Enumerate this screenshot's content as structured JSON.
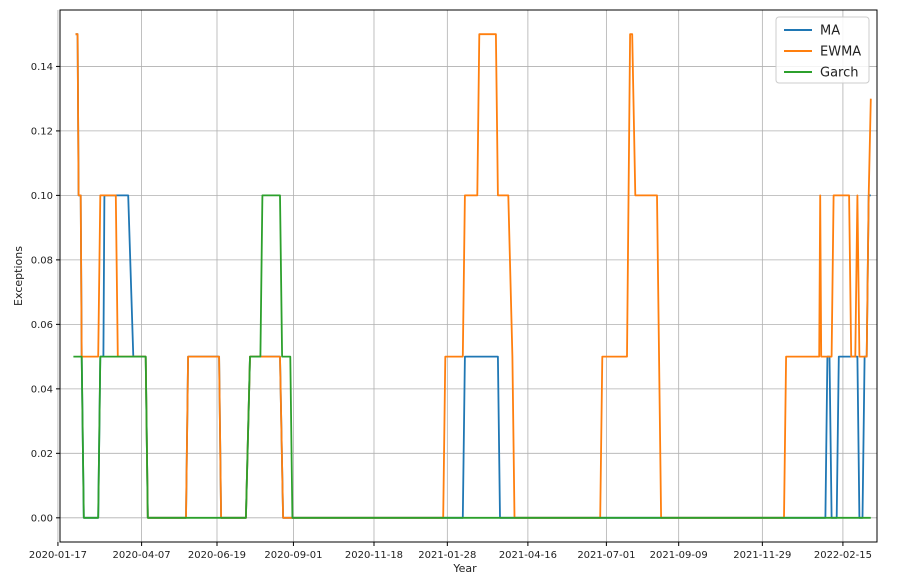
{
  "chart_data": {
    "type": "line",
    "title": "",
    "xlabel": "Year",
    "ylabel": "Exceptions",
    "ylim": [
      -0.0075,
      0.1575
    ],
    "xlim": [
      "2020-01-19",
      "2022-03-20"
    ],
    "grid": true,
    "legend_position": "top-right",
    "x_ticks": [
      "2020-01-17",
      "2020-04-07",
      "2020-06-19",
      "2020-09-01",
      "2020-11-18",
      "2021-01-28",
      "2021-04-16",
      "2021-07-01",
      "2021-09-09",
      "2021-11-29",
      "2022-02-15"
    ],
    "y_ticks": [
      "0.00",
      "0.02",
      "0.04",
      "0.06",
      "0.08",
      "0.10",
      "0.12",
      "0.14"
    ],
    "series": [
      {
        "name": "MA",
        "color": "#1f77b4",
        "points": [
          [
            "2020-02-03",
            0.15
          ],
          [
            "2020-02-05",
            0.15
          ],
          [
            "2020-02-06",
            0.1
          ],
          [
            "2020-02-08",
            0.1
          ],
          [
            "2020-02-09",
            0.05
          ],
          [
            "2020-02-11",
            0.0
          ],
          [
            "2020-02-25",
            0.0
          ],
          [
            "2020-02-27",
            0.05
          ],
          [
            "2020-03-01",
            0.05
          ],
          [
            "2020-03-02",
            0.1
          ],
          [
            "2020-03-25",
            0.1
          ],
          [
            "2020-03-30",
            0.05
          ],
          [
            "2020-04-11",
            0.05
          ],
          [
            "2020-04-13",
            0.0
          ],
          [
            "2020-05-20",
            0.0
          ],
          [
            "2020-05-22",
            0.05
          ],
          [
            "2020-06-21",
            0.05
          ],
          [
            "2020-06-23",
            0.0
          ],
          [
            "2020-07-17",
            0.0
          ],
          [
            "2020-07-21",
            0.05
          ],
          [
            "2020-08-19",
            0.05
          ],
          [
            "2020-08-22",
            0.0
          ],
          [
            "2021-02-12",
            0.0
          ],
          [
            "2021-02-14",
            0.05
          ],
          [
            "2021-03-18",
            0.05
          ],
          [
            "2021-03-20",
            0.0
          ],
          [
            "2022-01-29",
            0.0
          ],
          [
            "2022-01-31",
            0.05
          ],
          [
            "2022-02-02",
            0.05
          ],
          [
            "2022-02-04",
            0.0
          ],
          [
            "2022-02-09",
            0.0
          ],
          [
            "2022-02-11",
            0.05
          ],
          [
            "2022-03-01",
            0.05
          ],
          [
            "2022-03-03",
            0.0
          ],
          [
            "2022-03-06",
            0.0
          ],
          [
            "2022-03-08",
            0.05
          ],
          [
            "2022-03-10",
            0.05
          ],
          [
            "2022-03-12",
            0.1
          ],
          [
            "2022-03-14",
            0.1
          ]
        ]
      },
      {
        "name": "EWMA",
        "color": "#ff7f0e",
        "points": [
          [
            "2020-02-03",
            0.15
          ],
          [
            "2020-02-05",
            0.15
          ],
          [
            "2020-02-06",
            0.1
          ],
          [
            "2020-02-08",
            0.1
          ],
          [
            "2020-02-09",
            0.05
          ],
          [
            "2020-02-25",
            0.05
          ],
          [
            "2020-02-27",
            0.1
          ],
          [
            "2020-03-13",
            0.1
          ],
          [
            "2020-03-15",
            0.05
          ],
          [
            "2020-04-11",
            0.05
          ],
          [
            "2020-04-13",
            0.0
          ],
          [
            "2020-05-20",
            0.0
          ],
          [
            "2020-05-22",
            0.05
          ],
          [
            "2020-06-21",
            0.05
          ],
          [
            "2020-06-23",
            0.0
          ],
          [
            "2020-07-17",
            0.0
          ],
          [
            "2020-07-21",
            0.05
          ],
          [
            "2020-08-19",
            0.05
          ],
          [
            "2020-08-22",
            0.0
          ],
          [
            "2021-01-24",
            0.0
          ],
          [
            "2021-01-26",
            0.05
          ],
          [
            "2021-02-12",
            0.05
          ],
          [
            "2021-02-14",
            0.1
          ],
          [
            "2021-02-26",
            0.1
          ],
          [
            "2021-02-28",
            0.15
          ],
          [
            "2021-03-16",
            0.15
          ],
          [
            "2021-03-18",
            0.1
          ],
          [
            "2021-03-28",
            0.1
          ],
          [
            "2021-04-01",
            0.05
          ],
          [
            "2021-04-03",
            0.0
          ],
          [
            "2021-06-25",
            0.0
          ],
          [
            "2021-06-27",
            0.05
          ],
          [
            "2021-07-21",
            0.05
          ],
          [
            "2021-07-24",
            0.15
          ],
          [
            "2021-07-26",
            0.15
          ],
          [
            "2021-07-29",
            0.1
          ],
          [
            "2021-08-19",
            0.1
          ],
          [
            "2021-08-23",
            0.0
          ],
          [
            "2021-12-20",
            0.0
          ],
          [
            "2021-12-22",
            0.05
          ],
          [
            "2022-01-23",
            0.05
          ],
          [
            "2022-01-24",
            0.1
          ],
          [
            "2022-01-25",
            0.05
          ],
          [
            "2022-02-04",
            0.05
          ],
          [
            "2022-02-06",
            0.1
          ],
          [
            "2022-02-21",
            0.1
          ],
          [
            "2022-02-23",
            0.05
          ],
          [
            "2022-02-27",
            0.05
          ],
          [
            "2022-03-01",
            0.1
          ],
          [
            "2022-03-03",
            0.05
          ],
          [
            "2022-03-10",
            0.05
          ],
          [
            "2022-03-12",
            0.1
          ],
          [
            "2022-03-14",
            0.13
          ]
        ]
      },
      {
        "name": "Garch",
        "color": "#2ca02c",
        "points": [
          [
            "2020-02-01",
            0.05
          ],
          [
            "2020-02-09",
            0.05
          ],
          [
            "2020-02-11",
            0.0
          ],
          [
            "2020-02-25",
            0.0
          ],
          [
            "2020-02-27",
            0.05
          ],
          [
            "2020-04-11",
            0.05
          ],
          [
            "2020-04-13",
            0.0
          ],
          [
            "2020-07-17",
            0.0
          ],
          [
            "2020-07-21",
            0.05
          ],
          [
            "2020-07-31",
            0.05
          ],
          [
            "2020-08-02",
            0.1
          ],
          [
            "2020-08-19",
            0.1
          ],
          [
            "2020-08-21",
            0.05
          ],
          [
            "2020-08-29",
            0.05
          ],
          [
            "2020-08-31",
            0.0
          ],
          [
            "2022-03-14",
            0.0
          ]
        ]
      }
    ]
  }
}
